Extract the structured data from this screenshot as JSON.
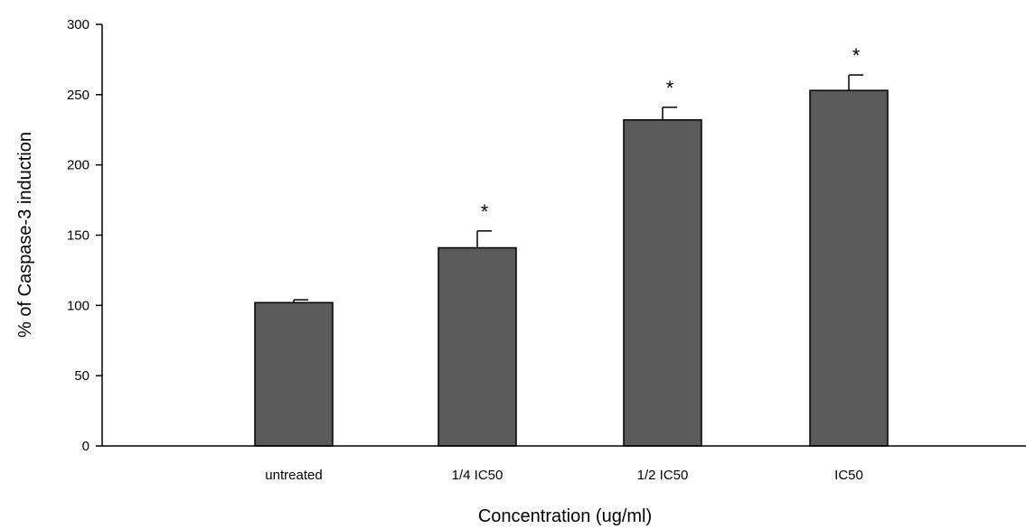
{
  "chart_data": {
    "type": "bar",
    "title": "",
    "xlabel": "Concentration (ug/ml)",
    "ylabel": "% of Caspase-3 induction",
    "categories": [
      "untreated",
      "1/4 IC50",
      "1/2 IC50",
      "IC50"
    ],
    "values": [
      102,
      141,
      232,
      253
    ],
    "errors": [
      2,
      12,
      9,
      11
    ],
    "significance": [
      "",
      "*",
      "*",
      "*"
    ],
    "ylim": [
      0,
      300
    ],
    "yticks": [
      0,
      50,
      100,
      150,
      200,
      250,
      300
    ],
    "grid": false,
    "legend": "none",
    "colors": {
      "bar": "#5a5a5a",
      "bar_edge": "#000000",
      "axis": "#000000"
    }
  }
}
